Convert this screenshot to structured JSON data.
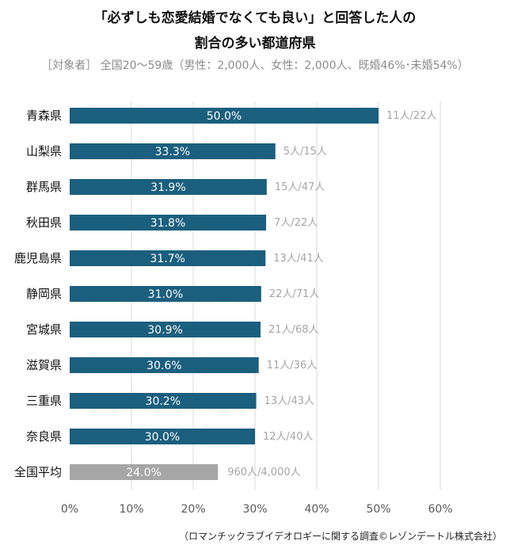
{
  "chart_data": {
    "type": "bar",
    "orientation": "horizontal",
    "title": "「必ずしも恋愛結婚でなくても良い」と回答した人の",
    "title_line2": "割合の多い都道府県",
    "subtitle": "［対象者］ 全国20～59歳（男性：2,000人、女性：2,000人、既婚46%･未婚54%）",
    "source": "（ロマンチックラブイデオロギーに関する調査©レゾンデートル株式会社）",
    "categories": [
      "青森県",
      "山梨県",
      "群馬県",
      "秋田県",
      "鹿児島県",
      "静岡県",
      "宮城県",
      "滋賀県",
      "三重県",
      "奈良県",
      "全国平均"
    ],
    "values": [
      50.0,
      33.3,
      31.9,
      31.8,
      31.7,
      31.0,
      30.9,
      30.6,
      30.2,
      30.0,
      24.0
    ],
    "value_labels": [
      "50.0%",
      "33.3%",
      "31.9%",
      "31.8%",
      "31.7%",
      "31.0%",
      "30.9%",
      "30.6%",
      "30.2%",
      "30.0%",
      "24.0%"
    ],
    "count_labels": [
      "11人/22人",
      "5人/15人",
      "15人/47人",
      "7人/22人",
      "13人/41人",
      "22人/71人",
      "21人/68人",
      "11人/36人",
      "13人/43人",
      "12人/40人",
      "960人/4,000人"
    ],
    "xlim": [
      0,
      60
    ],
    "x_ticks": [
      "0%",
      "10%",
      "20%",
      "30%",
      "40%",
      "50%",
      "60%"
    ],
    "grid": true,
    "colors": {
      "bar": "#1b5f7e",
      "average_bar": "#a6a6a6",
      "count_label": "#a6a6a6",
      "grid": "#d9d9d9"
    }
  }
}
